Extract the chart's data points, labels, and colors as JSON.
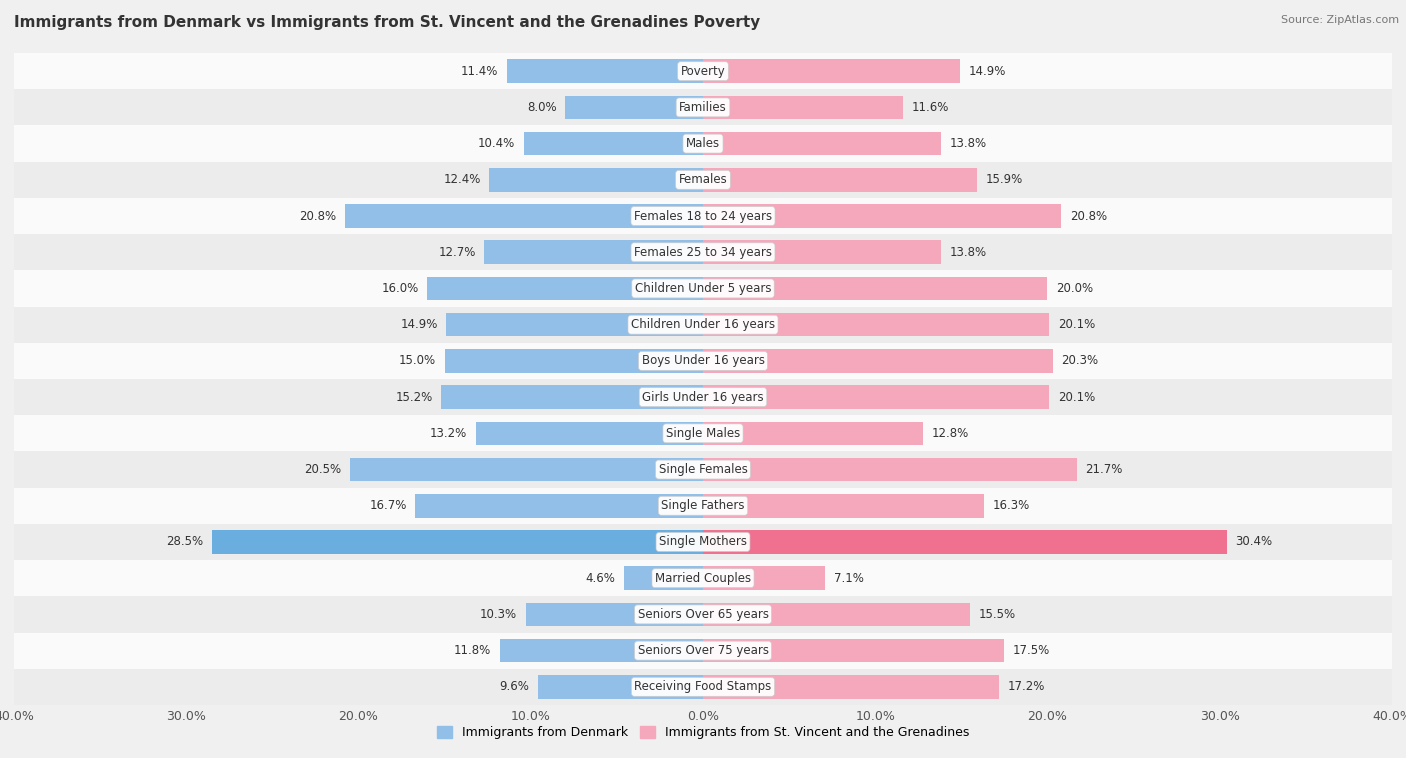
{
  "title": "Immigrants from Denmark vs Immigrants from St. Vincent and the Grenadines Poverty",
  "source": "Source: ZipAtlas.com",
  "categories": [
    "Poverty",
    "Families",
    "Males",
    "Females",
    "Females 18 to 24 years",
    "Females 25 to 34 years",
    "Children Under 5 years",
    "Children Under 16 years",
    "Boys Under 16 years",
    "Girls Under 16 years",
    "Single Males",
    "Single Females",
    "Single Fathers",
    "Single Mothers",
    "Married Couples",
    "Seniors Over 65 years",
    "Seniors Over 75 years",
    "Receiving Food Stamps"
  ],
  "left_values": [
    11.4,
    8.0,
    10.4,
    12.4,
    20.8,
    12.7,
    16.0,
    14.9,
    15.0,
    15.2,
    13.2,
    20.5,
    16.7,
    28.5,
    4.6,
    10.3,
    11.8,
    9.6
  ],
  "right_values": [
    14.9,
    11.6,
    13.8,
    15.9,
    20.8,
    13.8,
    20.0,
    20.1,
    20.3,
    20.1,
    12.8,
    21.7,
    16.3,
    30.4,
    7.1,
    15.5,
    17.5,
    17.2
  ],
  "left_color": "#92bfe8",
  "right_color": "#f5a7bc",
  "highlight_left_color": "#6aaee0",
  "highlight_right_color": "#f07090",
  "bg_color": "#f0f0f0",
  "row_bg_even": "#fafafa",
  "row_bg_odd": "#ececec",
  "xlim": 40.0,
  "legend_left": "Immigrants from Denmark",
  "legend_right": "Immigrants from St. Vincent and the Grenadines"
}
